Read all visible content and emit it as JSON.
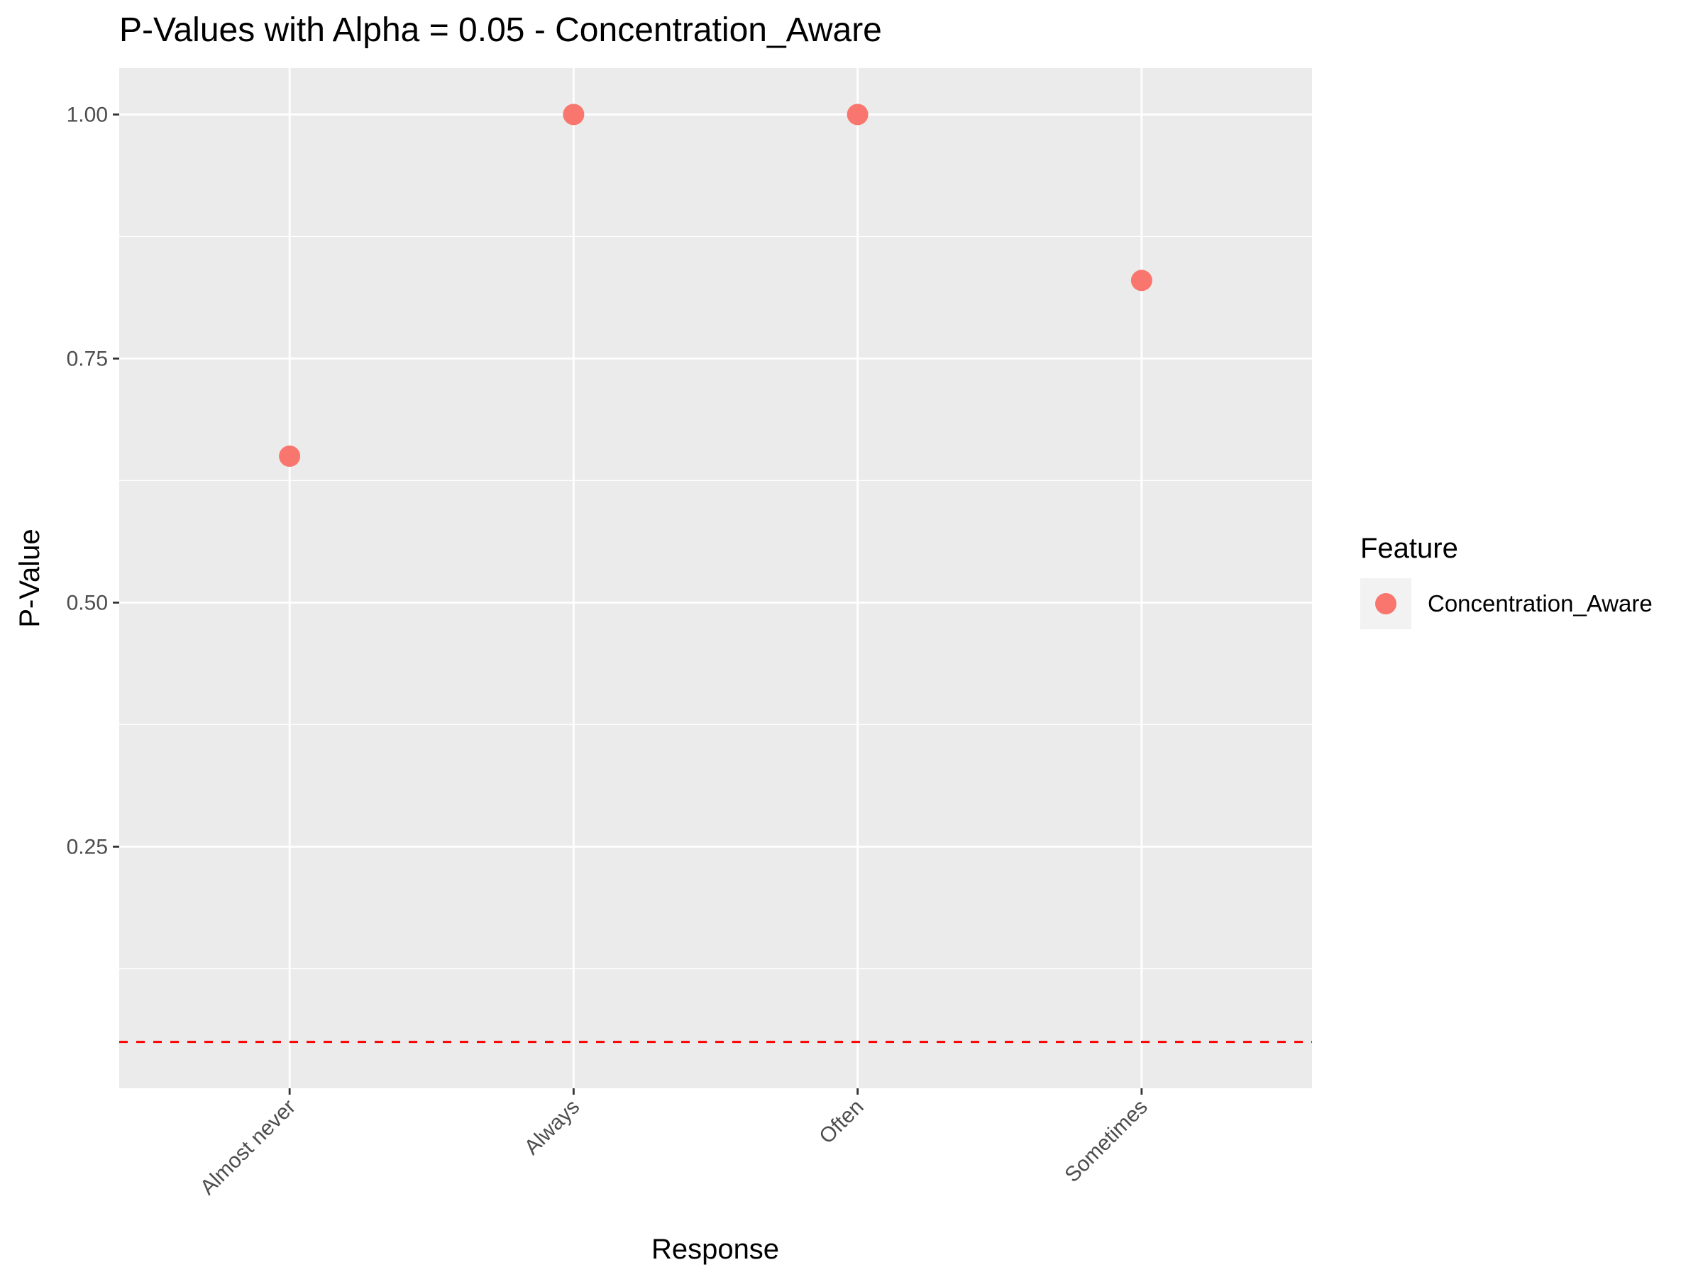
{
  "chart_data": {
    "type": "scatter",
    "title": "P-Values with Alpha = 0.05 - Concentration_Aware",
    "xlabel": "Response",
    "ylabel": "P-Value",
    "categories": [
      "Almost never",
      "Always",
      "Often",
      "Sometimes"
    ],
    "series": [
      {
        "name": "Concentration_Aware",
        "color": "#F8766D",
        "values": [
          0.65,
          1.0,
          1.0,
          0.83
        ]
      }
    ],
    "y_ticks": [
      0.25,
      0.5,
      0.75,
      1.0
    ],
    "y_tick_labels": [
      "0.25",
      "0.50",
      "0.75",
      "1.00"
    ],
    "ylim": [
      0.0025,
      1.0475
    ],
    "reference_line": {
      "y": 0.05,
      "color": "#FF0000",
      "style": "dashed"
    },
    "legend": {
      "title": "Feature",
      "placement": "right"
    },
    "panel_background": "#EBEBEB",
    "grid": true
  }
}
